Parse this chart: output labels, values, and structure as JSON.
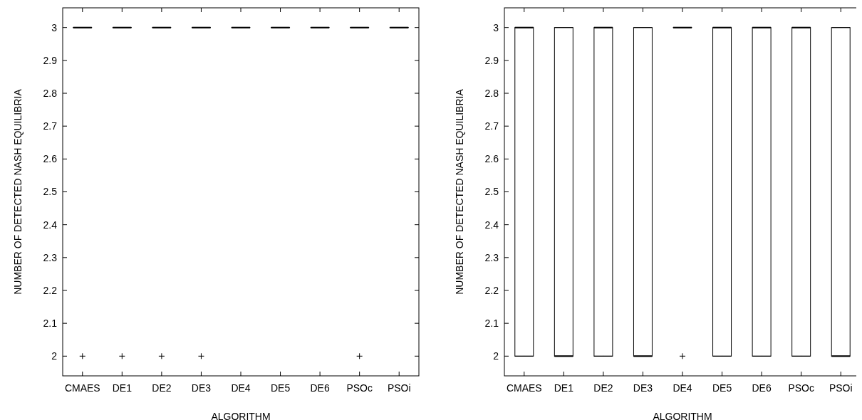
{
  "chart_data": [
    {
      "type": "box",
      "xlabel": "ALGORITHM",
      "ylabel": "NUMBER OF DETECTED NASH EQUILIBRIA",
      "categories": [
        "CMAES",
        "DE1",
        "DE2",
        "DE3",
        "DE4",
        "DE5",
        "DE6",
        "PSOc",
        "PSOi"
      ],
      "ylim": [
        1.94,
        3.06
      ],
      "yticks": [
        2,
        2.1,
        2.2,
        2.3,
        2.4,
        2.5,
        2.6,
        2.7,
        2.8,
        2.9,
        3
      ],
      "boxes": [
        {
          "low": 3,
          "q1": 3,
          "median": 3,
          "q3": 3,
          "high": 3,
          "outliers": [
            2
          ]
        },
        {
          "low": 3,
          "q1": 3,
          "median": 3,
          "q3": 3,
          "high": 3,
          "outliers": [
            2
          ]
        },
        {
          "low": 3,
          "q1": 3,
          "median": 3,
          "q3": 3,
          "high": 3,
          "outliers": [
            2
          ]
        },
        {
          "low": 3,
          "q1": 3,
          "median": 3,
          "q3": 3,
          "high": 3,
          "outliers": [
            2
          ]
        },
        {
          "low": 3,
          "q1": 3,
          "median": 3,
          "q3": 3,
          "high": 3
        },
        {
          "low": 3,
          "q1": 3,
          "median": 3,
          "q3": 3,
          "high": 3
        },
        {
          "low": 3,
          "q1": 3,
          "median": 3,
          "q3": 3,
          "high": 3
        },
        {
          "low": 3,
          "q1": 3,
          "median": 3,
          "q3": 3,
          "high": 3,
          "outliers": [
            2
          ]
        },
        {
          "low": 3,
          "q1": 3,
          "median": 3,
          "q3": 3,
          "high": 3
        }
      ]
    },
    {
      "type": "box",
      "xlabel": "ALGORITHM",
      "ylabel": "NUMBER OF DETECTED NASH EQUILIBRIA",
      "categories": [
        "CMAES",
        "DE1",
        "DE2",
        "DE3",
        "DE4",
        "DE5",
        "DE6",
        "PSOc",
        "PSOi"
      ],
      "ylim": [
        1.94,
        3.06
      ],
      "yticks": [
        2,
        2.1,
        2.2,
        2.3,
        2.4,
        2.5,
        2.6,
        2.7,
        2.8,
        2.9,
        3
      ],
      "boxes": [
        {
          "low": 2,
          "q1": 2,
          "median": 3,
          "q3": 3,
          "high": 3
        },
        {
          "low": 2,
          "q1": 2,
          "median": 2,
          "q3": 3,
          "high": 3
        },
        {
          "low": 2,
          "q1": 2,
          "median": 3,
          "q3": 3,
          "high": 3
        },
        {
          "low": 2,
          "q1": 2,
          "median": 2,
          "q3": 3,
          "high": 3
        },
        {
          "low": 3,
          "q1": 3,
          "median": 3,
          "q3": 3,
          "high": 3,
          "outliers": [
            2
          ]
        },
        {
          "low": 2,
          "q1": 2,
          "median": 3,
          "q3": 3,
          "high": 3
        },
        {
          "low": 2,
          "q1": 2,
          "median": 3,
          "q3": 3,
          "high": 3
        },
        {
          "low": 2,
          "q1": 2,
          "median": 3,
          "q3": 3,
          "high": 3
        },
        {
          "low": 2,
          "q1": 2,
          "median": 2,
          "q3": 3,
          "high": 3
        }
      ]
    }
  ]
}
